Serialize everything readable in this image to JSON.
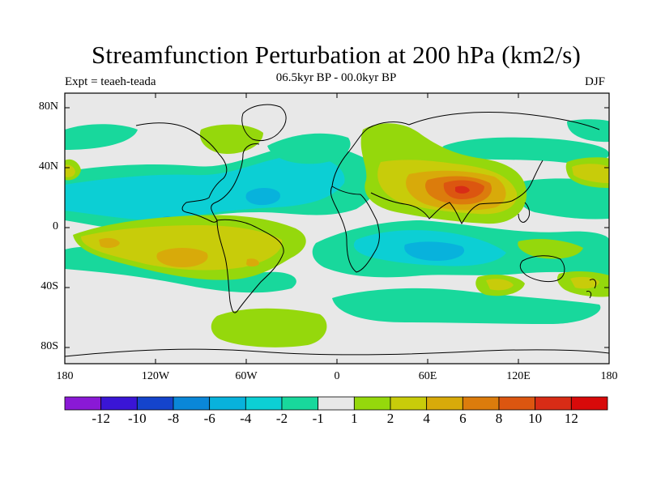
{
  "title": "Streamfunction Perturbation at 200 hPa (km2/s)",
  "subtitle": "06.5kyr BP - 00.0kyr BP",
  "expt_label": "Expt = teaeh-teada",
  "season": "DJF",
  "lat_ticks": [
    "80N",
    "40N",
    "0",
    "40S",
    "80S"
  ],
  "lon_ticks": [
    "180",
    "120W",
    "60W",
    "0",
    "60E",
    "120E",
    "180"
  ],
  "colorbar": {
    "colors": [
      "#8a19d6",
      "#3a15d6",
      "#1444cc",
      "#0a87d8",
      "#08b2dc",
      "#0ccfd4",
      "#18d89c",
      "#e8e8e8",
      "#95d80c",
      "#c8cc0a",
      "#d8aa0a",
      "#dc7c0c",
      "#dc5610",
      "#d82c16",
      "#d80a0a"
    ],
    "labels": [
      "-12",
      "-10",
      "-8",
      "-6",
      "-4",
      "-2",
      "-1",
      "1",
      "2",
      "4",
      "6",
      "8",
      "10",
      "12"
    ]
  },
  "field_colors": {
    "background": "#e8e8e8",
    "neg1": "#18d89c",
    "neg2": "#0ccfd4",
    "neg4": "#08b2dc",
    "pos1": "#95d80c",
    "pos2": "#c8cc0a",
    "pos4": "#d8aa0a",
    "pos6": "#dc7c0c",
    "pos8": "#dc5610",
    "pos10": "#d82c16"
  }
}
